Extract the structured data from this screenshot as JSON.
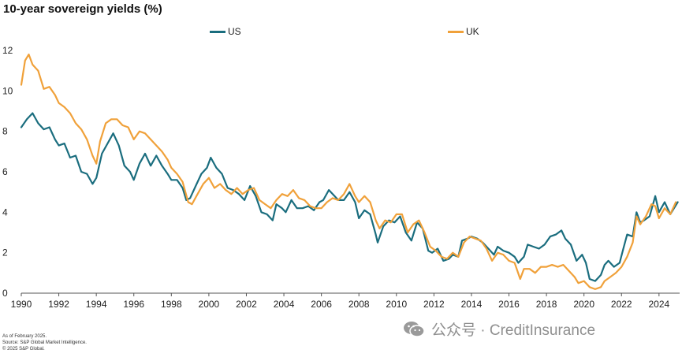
{
  "chart_data": {
    "type": "line",
    "title": "10-year sovereign yields (%)",
    "xlabel": "",
    "ylabel": "",
    "xlim": [
      1990,
      2025.1
    ],
    "ylim": [
      0,
      12
    ],
    "grid": false,
    "legend_position": "top-center",
    "x_ticks": [
      1990,
      1992,
      1994,
      1996,
      1998,
      2000,
      2002,
      2004,
      2006,
      2008,
      2010,
      2012,
      2014,
      2016,
      2018,
      2020,
      2022,
      2024
    ],
    "y_ticks": [
      0,
      2,
      4,
      6,
      8,
      10,
      12
    ],
    "x_tick_labels": [
      "1990",
      "1992",
      "1994",
      "1996",
      "1998",
      "2000",
      "2002",
      "2004",
      "2006",
      "2008",
      "2010",
      "2012",
      "2014",
      "2016",
      "2018",
      "2020",
      "2022",
      "2024"
    ],
    "y_tick_labels": [
      "0",
      "2",
      "4",
      "6",
      "8",
      "10",
      "12"
    ],
    "series": [
      {
        "name": "US",
        "color": "#1a6d7e",
        "points": [
          [
            1990.0,
            8.2
          ],
          [
            1990.3,
            8.6
          ],
          [
            1990.6,
            8.9
          ],
          [
            1990.9,
            8.4
          ],
          [
            1991.2,
            8.1
          ],
          [
            1991.5,
            8.2
          ],
          [
            1991.8,
            7.6
          ],
          [
            1992.0,
            7.3
          ],
          [
            1992.3,
            7.4
          ],
          [
            1992.6,
            6.7
          ],
          [
            1992.9,
            6.8
          ],
          [
            1993.2,
            6.0
          ],
          [
            1993.5,
            5.9
          ],
          [
            1993.8,
            5.4
          ],
          [
            1994.0,
            5.7
          ],
          [
            1994.3,
            6.9
          ],
          [
            1994.6,
            7.4
          ],
          [
            1994.9,
            7.9
          ],
          [
            1995.2,
            7.3
          ],
          [
            1995.5,
            6.3
          ],
          [
            1995.8,
            6.0
          ],
          [
            1996.0,
            5.6
          ],
          [
            1996.3,
            6.4
          ],
          [
            1996.6,
            6.9
          ],
          [
            1996.9,
            6.3
          ],
          [
            1997.2,
            6.8
          ],
          [
            1997.5,
            6.3
          ],
          [
            1997.8,
            5.9
          ],
          [
            1998.0,
            5.6
          ],
          [
            1998.3,
            5.6
          ],
          [
            1998.6,
            5.2
          ],
          [
            1998.8,
            4.6
          ],
          [
            1999.0,
            4.7
          ],
          [
            1999.3,
            5.3
          ],
          [
            1999.6,
            5.9
          ],
          [
            1999.9,
            6.2
          ],
          [
            2000.1,
            6.7
          ],
          [
            2000.4,
            6.2
          ],
          [
            2000.7,
            5.9
          ],
          [
            2001.0,
            5.2
          ],
          [
            2001.3,
            5.1
          ],
          [
            2001.6,
            4.9
          ],
          [
            2001.9,
            4.6
          ],
          [
            2002.2,
            5.3
          ],
          [
            2002.5,
            4.8
          ],
          [
            2002.8,
            4.0
          ],
          [
            2003.1,
            3.9
          ],
          [
            2003.4,
            3.6
          ],
          [
            2003.6,
            4.4
          ],
          [
            2003.9,
            4.2
          ],
          [
            2004.1,
            4.0
          ],
          [
            2004.4,
            4.6
          ],
          [
            2004.7,
            4.2
          ],
          [
            2005.0,
            4.2
          ],
          [
            2005.3,
            4.3
          ],
          [
            2005.6,
            4.1
          ],
          [
            2005.9,
            4.5
          ],
          [
            2006.1,
            4.6
          ],
          [
            2006.4,
            5.1
          ],
          [
            2006.7,
            4.8
          ],
          [
            2006.9,
            4.6
          ],
          [
            2007.2,
            4.6
          ],
          [
            2007.5,
            5.0
          ],
          [
            2007.8,
            4.5
          ],
          [
            2008.0,
            3.7
          ],
          [
            2008.3,
            4.1
          ],
          [
            2008.6,
            3.9
          ],
          [
            2008.9,
            2.9
          ],
          [
            2009.0,
            2.5
          ],
          [
            2009.3,
            3.3
          ],
          [
            2009.6,
            3.6
          ],
          [
            2009.9,
            3.5
          ],
          [
            2010.2,
            3.8
          ],
          [
            2010.5,
            3.0
          ],
          [
            2010.8,
            2.6
          ],
          [
            2011.1,
            3.5
          ],
          [
            2011.4,
            3.2
          ],
          [
            2011.7,
            2.1
          ],
          [
            2011.9,
            2.0
          ],
          [
            2012.2,
            2.2
          ],
          [
            2012.5,
            1.6
          ],
          [
            2012.8,
            1.7
          ],
          [
            2013.0,
            1.9
          ],
          [
            2013.3,
            1.8
          ],
          [
            2013.5,
            2.6
          ],
          [
            2013.8,
            2.7
          ],
          [
            2014.0,
            2.8
          ],
          [
            2014.3,
            2.7
          ],
          [
            2014.6,
            2.5
          ],
          [
            2014.9,
            2.2
          ],
          [
            2015.2,
            1.9
          ],
          [
            2015.4,
            2.3
          ],
          [
            2015.7,
            2.1
          ],
          [
            2016.0,
            2.0
          ],
          [
            2016.3,
            1.8
          ],
          [
            2016.5,
            1.5
          ],
          [
            2016.8,
            1.8
          ],
          [
            2017.0,
            2.4
          ],
          [
            2017.3,
            2.3
          ],
          [
            2017.6,
            2.2
          ],
          [
            2017.9,
            2.4
          ],
          [
            2018.2,
            2.8
          ],
          [
            2018.5,
            2.9
          ],
          [
            2018.8,
            3.1
          ],
          [
            2019.0,
            2.7
          ],
          [
            2019.3,
            2.4
          ],
          [
            2019.6,
            1.6
          ],
          [
            2019.9,
            1.9
          ],
          [
            2020.1,
            1.5
          ],
          [
            2020.3,
            0.7
          ],
          [
            2020.6,
            0.6
          ],
          [
            2020.9,
            0.9
          ],
          [
            2021.1,
            1.4
          ],
          [
            2021.3,
            1.6
          ],
          [
            2021.6,
            1.3
          ],
          [
            2021.9,
            1.5
          ],
          [
            2022.1,
            2.2
          ],
          [
            2022.3,
            2.9
          ],
          [
            2022.6,
            2.8
          ],
          [
            2022.8,
            4.0
          ],
          [
            2023.0,
            3.5
          ],
          [
            2023.2,
            3.6
          ],
          [
            2023.5,
            3.8
          ],
          [
            2023.8,
            4.8
          ],
          [
            2024.0,
            4.0
          ],
          [
            2024.3,
            4.5
          ],
          [
            2024.6,
            3.9
          ],
          [
            2024.8,
            4.2
          ],
          [
            2025.0,
            4.5
          ]
        ]
      },
      {
        "name": "UK",
        "color": "#f0a13a",
        "points": [
          [
            1990.0,
            10.3
          ],
          [
            1990.2,
            11.5
          ],
          [
            1990.4,
            11.8
          ],
          [
            1990.6,
            11.3
          ],
          [
            1990.9,
            11.0
          ],
          [
            1991.2,
            10.1
          ],
          [
            1991.5,
            10.2
          ],
          [
            1991.8,
            9.8
          ],
          [
            1992.0,
            9.4
          ],
          [
            1992.3,
            9.2
          ],
          [
            1992.6,
            8.9
          ],
          [
            1992.9,
            8.4
          ],
          [
            1993.2,
            8.1
          ],
          [
            1993.5,
            7.6
          ],
          [
            1993.8,
            6.8
          ],
          [
            1994.0,
            6.4
          ],
          [
            1994.2,
            7.5
          ],
          [
            1994.5,
            8.4
          ],
          [
            1994.8,
            8.6
          ],
          [
            1995.1,
            8.6
          ],
          [
            1995.4,
            8.3
          ],
          [
            1995.7,
            8.2
          ],
          [
            1996.0,
            7.6
          ],
          [
            1996.3,
            8.0
          ],
          [
            1996.6,
            7.9
          ],
          [
            1996.9,
            7.6
          ],
          [
            1997.2,
            7.3
          ],
          [
            1997.5,
            7.0
          ],
          [
            1997.8,
            6.6
          ],
          [
            1998.0,
            6.2
          ],
          [
            1998.3,
            5.9
          ],
          [
            1998.6,
            5.5
          ],
          [
            1998.9,
            4.5
          ],
          [
            1999.1,
            4.4
          ],
          [
            1999.4,
            4.9
          ],
          [
            1999.7,
            5.4
          ],
          [
            2000.0,
            5.7
          ],
          [
            2000.3,
            5.2
          ],
          [
            2000.6,
            5.4
          ],
          [
            2000.9,
            5.1
          ],
          [
            2001.2,
            4.9
          ],
          [
            2001.5,
            5.2
          ],
          [
            2001.8,
            4.9
          ],
          [
            2002.1,
            5.1
          ],
          [
            2002.4,
            5.2
          ],
          [
            2002.7,
            4.6
          ],
          [
            2003.0,
            4.4
          ],
          [
            2003.3,
            4.2
          ],
          [
            2003.6,
            4.6
          ],
          [
            2003.9,
            4.9
          ],
          [
            2004.2,
            4.8
          ],
          [
            2004.5,
            5.1
          ],
          [
            2004.8,
            4.7
          ],
          [
            2005.1,
            4.6
          ],
          [
            2005.4,
            4.3
          ],
          [
            2005.7,
            4.2
          ],
          [
            2006.0,
            4.2
          ],
          [
            2006.3,
            4.5
          ],
          [
            2006.6,
            4.7
          ],
          [
            2006.9,
            4.6
          ],
          [
            2007.2,
            4.9
          ],
          [
            2007.5,
            5.4
          ],
          [
            2007.8,
            4.8
          ],
          [
            2008.0,
            4.5
          ],
          [
            2008.3,
            4.8
          ],
          [
            2008.6,
            4.5
          ],
          [
            2008.9,
            3.6
          ],
          [
            2009.1,
            3.2
          ],
          [
            2009.4,
            3.6
          ],
          [
            2009.7,
            3.5
          ],
          [
            2010.0,
            3.9
          ],
          [
            2010.3,
            3.9
          ],
          [
            2010.6,
            3.0
          ],
          [
            2010.9,
            3.4
          ],
          [
            2011.2,
            3.6
          ],
          [
            2011.5,
            3.0
          ],
          [
            2011.8,
            2.3
          ],
          [
            2012.1,
            2.1
          ],
          [
            2012.4,
            1.8
          ],
          [
            2012.7,
            1.7
          ],
          [
            2013.0,
            2.0
          ],
          [
            2013.3,
            1.8
          ],
          [
            2013.6,
            2.5
          ],
          [
            2013.9,
            2.8
          ],
          [
            2014.2,
            2.7
          ],
          [
            2014.5,
            2.6
          ],
          [
            2014.8,
            2.2
          ],
          [
            2015.1,
            1.6
          ],
          [
            2015.4,
            2.0
          ],
          [
            2015.7,
            1.9
          ],
          [
            2016.0,
            1.6
          ],
          [
            2016.3,
            1.5
          ],
          [
            2016.6,
            0.7
          ],
          [
            2016.8,
            1.2
          ],
          [
            2017.1,
            1.2
          ],
          [
            2017.4,
            1.0
          ],
          [
            2017.7,
            1.3
          ],
          [
            2018.0,
            1.3
          ],
          [
            2018.3,
            1.4
          ],
          [
            2018.6,
            1.3
          ],
          [
            2018.9,
            1.4
          ],
          [
            2019.2,
            1.1
          ],
          [
            2019.5,
            0.8
          ],
          [
            2019.7,
            0.5
          ],
          [
            2020.0,
            0.6
          ],
          [
            2020.3,
            0.3
          ],
          [
            2020.6,
            0.2
          ],
          [
            2020.9,
            0.3
          ],
          [
            2021.1,
            0.6
          ],
          [
            2021.4,
            0.8
          ],
          [
            2021.7,
            1.0
          ],
          [
            2022.0,
            1.3
          ],
          [
            2022.3,
            1.8
          ],
          [
            2022.6,
            2.5
          ],
          [
            2022.8,
            3.8
          ],
          [
            2023.0,
            3.4
          ],
          [
            2023.3,
            3.8
          ],
          [
            2023.6,
            4.4
          ],
          [
            2023.8,
            4.3
          ],
          [
            2024.0,
            3.7
          ],
          [
            2024.3,
            4.2
          ],
          [
            2024.6,
            3.9
          ],
          [
            2024.9,
            4.5
          ]
        ]
      }
    ]
  },
  "legend": [
    {
      "label": "US",
      "color": "#1a6d7e"
    },
    {
      "label": "UK",
      "color": "#f0a13a"
    }
  ],
  "footnotes": {
    "line1": "As of February 2025.",
    "line2": "Source: S&P Global Market Intelligence.",
    "line3": "© 2025 S&P Global."
  },
  "watermark": {
    "text": "公众号 · CreditInsurance",
    "icon": "wechat-icon"
  }
}
